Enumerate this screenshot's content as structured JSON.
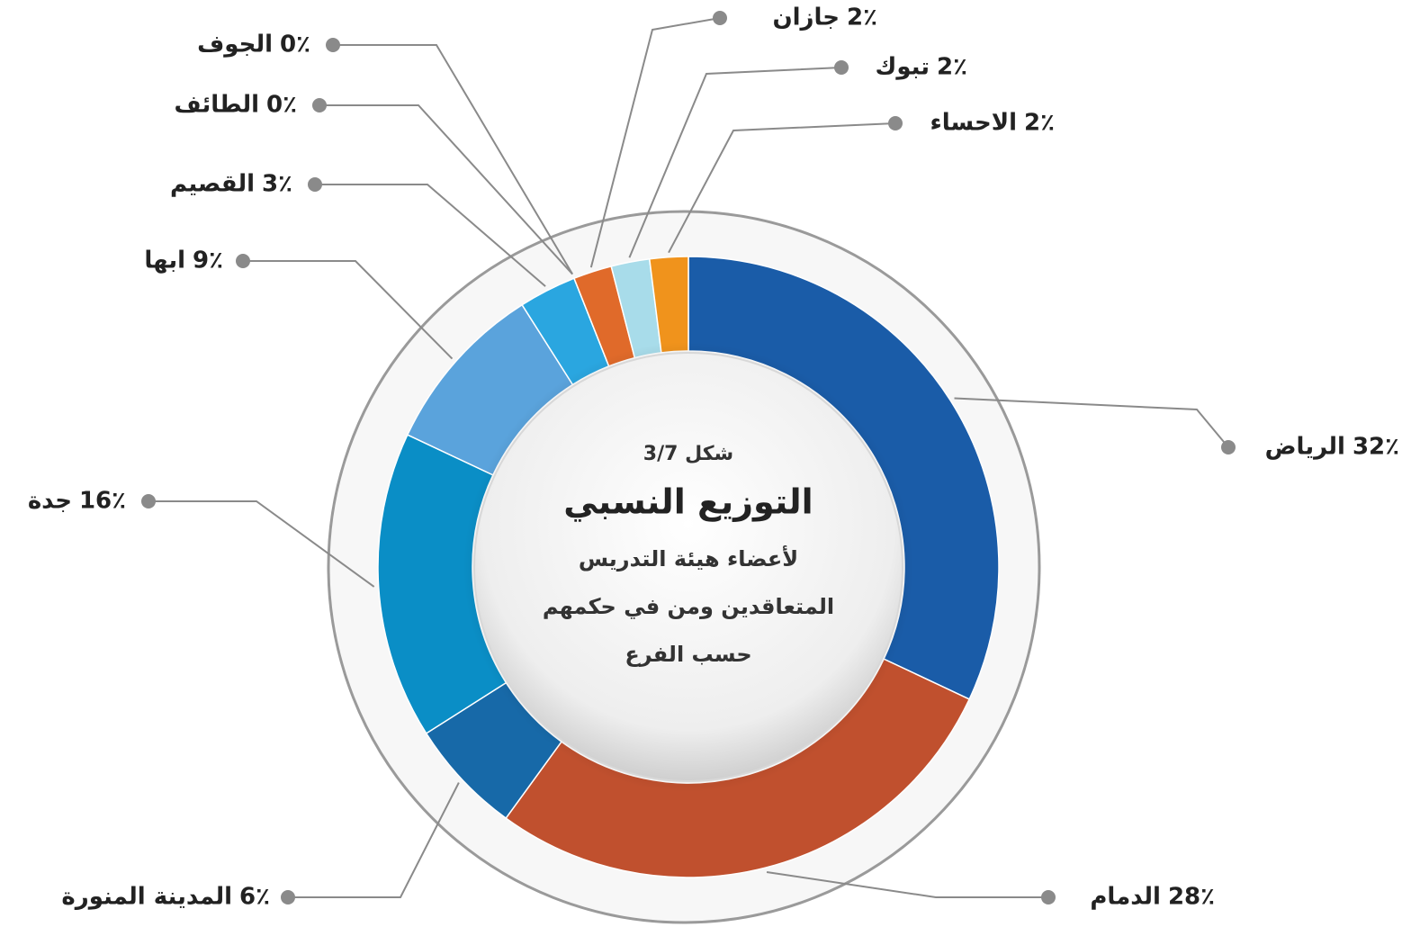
{
  "chart_data": {
    "type": "donut",
    "figure_label": "شكل 3/7",
    "title": "التوزيع النسبي",
    "subtitle_lines": [
      "لأعضاء هيئة التدريس",
      "المتعاقدين ومن في حكمهم",
      "حسب الفرع"
    ],
    "categories": [
      "الرياض",
      "الدمام",
      "المدينة المنورة",
      "جدة",
      "ابها",
      "القصيم",
      "الطائف",
      "الجوف",
      "جازان",
      "تبوك",
      "الاحساء"
    ],
    "values": [
      32,
      28,
      6,
      16,
      9,
      3,
      0,
      0,
      2,
      2,
      2
    ],
    "value_labels": [
      "32٪",
      "28٪",
      "6٪",
      "16٪",
      "9٪",
      "3٪",
      "0٪",
      "0٪",
      "2٪",
      "2٪",
      "2٪"
    ],
    "colors": [
      "#1a5ca8",
      "#c0502e",
      "#1769a8",
      "#0a8ec6",
      "#5aa3dc",
      "#2aa6e0",
      "#f5b520",
      "#2ab4e8",
      "#e06a2a",
      "#a8dcea",
      "#f0931c"
    ]
  }
}
